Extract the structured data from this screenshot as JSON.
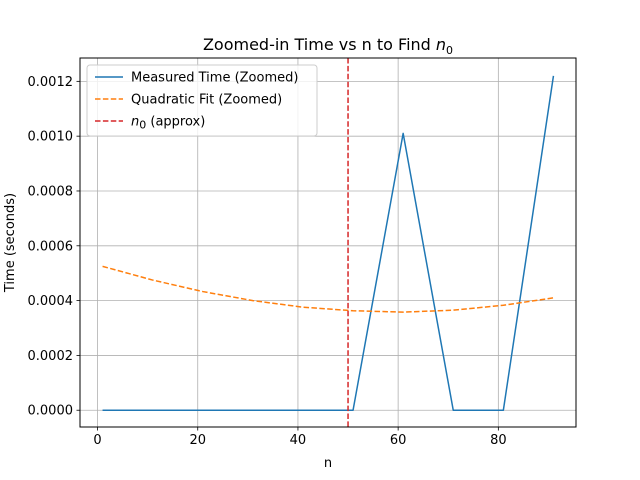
{
  "chart_data": {
    "type": "line",
    "title": "Zoomed-in Time vs n to Find",
    "title_math": {
      "symbol": "n",
      "subscript": "0"
    },
    "xlabel": "n",
    "ylabel": "Time (seconds)",
    "xlim": [
      -3.5,
      95.5
    ],
    "ylim": [
      -6.12e-05,
      0.0012852
    ],
    "x_ticks": [
      0,
      20,
      40,
      60,
      80
    ],
    "x_tick_labels": [
      "0",
      "20",
      "40",
      "60",
      "80"
    ],
    "y_ticks": [
      0.0,
      0.0002,
      0.0004,
      0.0006,
      0.0008,
      0.001,
      0.0012
    ],
    "y_tick_labels": [
      "0.0000",
      "0.0002",
      "0.0004",
      "0.0006",
      "0.0008",
      "0.0010",
      "0.0012"
    ],
    "grid": true,
    "legend_position": "top-left",
    "series": [
      {
        "name": "Measured Time (Zoomed)",
        "color": "#1f77b4",
        "linestyle": "solid",
        "x": [
          1,
          11,
          21,
          31,
          41,
          51,
          61,
          71,
          81,
          91
        ],
        "y": [
          0.0,
          0.0,
          0.0,
          0.0,
          0.0,
          0.0,
          0.00101,
          0.0,
          0.0,
          0.00122
        ]
      },
      {
        "name": "Quadratic Fit (Zoomed)",
        "color": "#ff7f0e",
        "linestyle": "dashed",
        "x": [
          1,
          11,
          21,
          31,
          41,
          51,
          61,
          71,
          81,
          91
        ],
        "y": [
          0.000525,
          0.000475,
          0.000433,
          0.0004,
          0.000376,
          0.000363,
          0.000358,
          0.000365,
          0.000383,
          0.00041
        ]
      }
    ],
    "vline": {
      "x": 50,
      "color": "#d62728",
      "linestyle": "dashed",
      "label_symbol": "n",
      "label_subscript": "0",
      "label_rest": " (approx)"
    }
  }
}
